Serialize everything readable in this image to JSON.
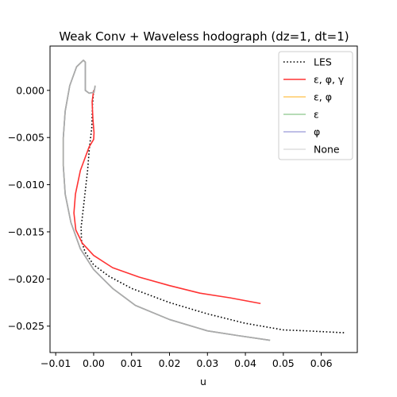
{
  "chart_data": {
    "type": "line",
    "title": "Weak Conv + Waveless hodograph (dz=1, dt=1)",
    "xlabel": "u",
    "ylabel": "",
    "xlim": [
      -0.0115,
      0.0695
    ],
    "ylim": [
      -0.0278,
      0.0047
    ],
    "xticks": [
      -0.01,
      0.0,
      0.01,
      0.02,
      0.03,
      0.04,
      0.05,
      0.06
    ],
    "xtick_labels": [
      "−0.01",
      "0.00",
      "0.01",
      "0.02",
      "0.03",
      "0.04",
      "0.05",
      "0.06"
    ],
    "yticks": [
      0.0,
      -0.005,
      -0.01,
      -0.015,
      -0.02,
      -0.025
    ],
    "ytick_labels": [
      "0.000",
      "−0.005",
      "−0.010",
      "−0.015",
      "−0.020",
      "−0.025"
    ],
    "legend_position": "upper-right",
    "series": [
      {
        "name": "LES",
        "color": "#000000",
        "style": "dotted",
        "points": [
          [
            0.0,
            0.0
          ],
          [
            -0.0003,
            -0.0015
          ],
          [
            -0.0005,
            -0.004
          ],
          [
            -0.0011,
            -0.006
          ],
          [
            -0.0016,
            -0.0085
          ],
          [
            -0.0023,
            -0.011
          ],
          [
            -0.003,
            -0.0135
          ],
          [
            -0.0033,
            -0.0145
          ],
          [
            -0.0032,
            -0.016
          ],
          [
            -0.0022,
            -0.0172
          ],
          [
            0.0,
            -0.0185
          ],
          [
            0.004,
            -0.0197
          ],
          [
            0.01,
            -0.021
          ],
          [
            0.02,
            -0.0225
          ],
          [
            0.03,
            -0.0237
          ],
          [
            0.04,
            -0.0247
          ],
          [
            0.05,
            -0.0254
          ],
          [
            0.056,
            -0.0255
          ],
          [
            0.066,
            -0.0257
          ]
        ]
      },
      {
        "name": "ε, φ, γ",
        "color": "#ff3333",
        "style": "solid",
        "points": [
          [
            0.0,
            0.0
          ],
          [
            -0.0004,
            -0.0012
          ],
          [
            -0.0002,
            -0.003
          ],
          [
            0.0001,
            -0.0045
          ],
          [
            0.0,
            -0.0052
          ],
          [
            -0.0012,
            -0.006
          ],
          [
            -0.0035,
            -0.0085
          ],
          [
            -0.0048,
            -0.011
          ],
          [
            -0.0052,
            -0.013
          ],
          [
            -0.0047,
            -0.0148
          ],
          [
            -0.003,
            -0.0162
          ],
          [
            0.0,
            -0.0175
          ],
          [
            0.005,
            -0.0188
          ],
          [
            0.012,
            -0.0198
          ],
          [
            0.02,
            -0.0207
          ],
          [
            0.028,
            -0.0215
          ],
          [
            0.036,
            -0.022
          ],
          [
            0.044,
            -0.0226
          ]
        ]
      },
      {
        "name": "ε, φ",
        "color": "#ffcc66",
        "style": "solid",
        "points": [
          [
            0.0004,
            0.0005
          ],
          [
            0.0001,
            -0.0002
          ],
          [
            -0.0012,
            -0.0003
          ],
          [
            -0.0022,
            0.0
          ],
          [
            -0.0022,
            0.0015
          ],
          [
            -0.0022,
            0.003
          ],
          [
            -0.0027,
            0.0032
          ],
          [
            -0.0045,
            0.0025
          ],
          [
            -0.0063,
            0.0005
          ],
          [
            -0.0075,
            -0.0022
          ],
          [
            -0.008,
            -0.005
          ],
          [
            -0.008,
            -0.008
          ],
          [
            -0.0075,
            -0.011
          ],
          [
            -0.006,
            -0.014
          ],
          [
            -0.0035,
            -0.0168
          ],
          [
            0.0,
            -0.019
          ],
          [
            0.005,
            -0.021
          ],
          [
            0.011,
            -0.0228
          ],
          [
            0.02,
            -0.0243
          ],
          [
            0.03,
            -0.0255
          ],
          [
            0.038,
            -0.026
          ],
          [
            0.0465,
            -0.0265
          ]
        ]
      },
      {
        "name": "ε",
        "color": "#9fd19f",
        "style": "solid",
        "points": [
          [
            0.0004,
            0.0005
          ],
          [
            0.0001,
            -0.0002
          ],
          [
            -0.0012,
            -0.0003
          ],
          [
            -0.0022,
            0.0
          ],
          [
            -0.0022,
            0.0015
          ],
          [
            -0.0022,
            0.003
          ],
          [
            -0.0027,
            0.0032
          ],
          [
            -0.0045,
            0.0025
          ],
          [
            -0.0063,
            0.0005
          ],
          [
            -0.0075,
            -0.0022
          ],
          [
            -0.008,
            -0.005
          ],
          [
            -0.008,
            -0.008
          ],
          [
            -0.0075,
            -0.011
          ],
          [
            -0.006,
            -0.014
          ],
          [
            -0.0035,
            -0.0168
          ],
          [
            0.0,
            -0.019
          ],
          [
            0.005,
            -0.021
          ],
          [
            0.011,
            -0.0228
          ],
          [
            0.02,
            -0.0243
          ],
          [
            0.03,
            -0.0255
          ],
          [
            0.038,
            -0.026
          ],
          [
            0.0465,
            -0.0265
          ]
        ]
      },
      {
        "name": "φ",
        "color": "#aaaadd",
        "style": "solid",
        "points": [
          [
            0.0004,
            0.0005
          ],
          [
            0.0001,
            -0.0002
          ],
          [
            -0.0012,
            -0.0003
          ],
          [
            -0.0022,
            0.0
          ],
          [
            -0.0022,
            0.0015
          ],
          [
            -0.0022,
            0.003
          ],
          [
            -0.0027,
            0.0032
          ],
          [
            -0.0045,
            0.0025
          ],
          [
            -0.0063,
            0.0005
          ],
          [
            -0.0075,
            -0.0022
          ],
          [
            -0.008,
            -0.005
          ],
          [
            -0.008,
            -0.008
          ],
          [
            -0.0075,
            -0.011
          ],
          [
            -0.006,
            -0.014
          ],
          [
            -0.0035,
            -0.0168
          ],
          [
            0.0,
            -0.019
          ],
          [
            0.005,
            -0.021
          ],
          [
            0.011,
            -0.0228
          ],
          [
            0.02,
            -0.0243
          ],
          [
            0.03,
            -0.0255
          ],
          [
            0.038,
            -0.026
          ],
          [
            0.0465,
            -0.0265
          ]
        ]
      },
      {
        "name": "None",
        "color": "#aaaaaa",
        "legend_color": "#dddddd",
        "style": "solid",
        "points": [
          [
            0.0004,
            0.0005
          ],
          [
            0.0001,
            -0.0002
          ],
          [
            -0.0012,
            -0.0003
          ],
          [
            -0.0022,
            0.0
          ],
          [
            -0.0022,
            0.0015
          ],
          [
            -0.0022,
            0.003
          ],
          [
            -0.0027,
            0.0032
          ],
          [
            -0.0045,
            0.0025
          ],
          [
            -0.0063,
            0.0005
          ],
          [
            -0.0075,
            -0.0022
          ],
          [
            -0.008,
            -0.005
          ],
          [
            -0.008,
            -0.008
          ],
          [
            -0.0075,
            -0.011
          ],
          [
            -0.006,
            -0.014
          ],
          [
            -0.0035,
            -0.0168
          ],
          [
            0.0,
            -0.019
          ],
          [
            0.005,
            -0.021
          ],
          [
            0.011,
            -0.0228
          ],
          [
            0.02,
            -0.0243
          ],
          [
            0.03,
            -0.0255
          ],
          [
            0.038,
            -0.026
          ],
          [
            0.0465,
            -0.0265
          ]
        ]
      }
    ]
  }
}
